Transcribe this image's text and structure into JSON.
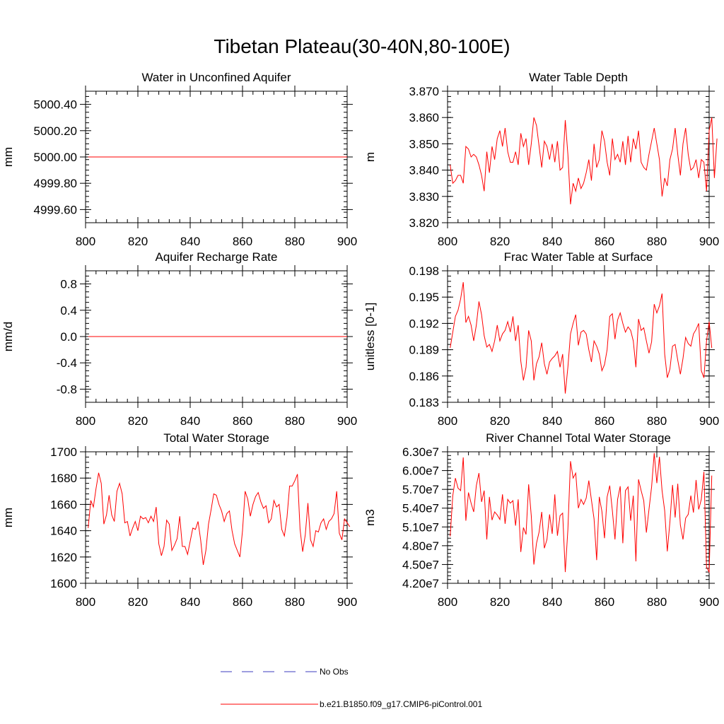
{
  "page": {
    "title": "Tibetan Plateau(30-40N,80-100E)"
  },
  "legend": {
    "items": [
      {
        "label": "No Obs",
        "color": "#3b3bbf",
        "style": "dashed"
      },
      {
        "label": "b.e21.B1850.f09_g17.CMIP6-piControl.001",
        "color": "#ff0000",
        "style": "solid"
      }
    ]
  },
  "chart_data": [
    {
      "type": "line",
      "title": "Water in Unconfined Aquifer",
      "ylabel": "mm",
      "xlim": [
        800,
        900
      ],
      "ylim": [
        4999.5,
        5000.5
      ],
      "xticks": [
        800,
        820,
        840,
        860,
        880,
        900
      ],
      "xtick_labels": [
        "800",
        "820",
        "840",
        "860",
        "880",
        "900"
      ],
      "yticks": [
        4999.6,
        4999.8,
        5000.0,
        5000.2,
        5000.4
      ],
      "ytick_labels": [
        "4999.60",
        "4999.80",
        "5000.00",
        "5000.20",
        "5000.40"
      ],
      "yminor_step": 0.04,
      "x_start": 801,
      "series": [
        {
          "color": "#ff0000",
          "values": [
            5000,
            5000,
            5000,
            5000,
            5000,
            5000,
            5000,
            5000,
            5000,
            5000,
            5000,
            5000,
            5000,
            5000,
            5000,
            5000,
            5000,
            5000,
            5000,
            5000,
            5000,
            5000,
            5000,
            5000,
            5000,
            5000,
            5000,
            5000,
            5000,
            5000,
            5000,
            5000,
            5000,
            5000,
            5000,
            5000,
            5000,
            5000,
            5000,
            5000,
            5000,
            5000,
            5000,
            5000,
            5000,
            5000,
            5000,
            5000,
            5000,
            5000,
            5000,
            5000,
            5000,
            5000,
            5000,
            5000,
            5000,
            5000,
            5000,
            5000,
            5000,
            5000,
            5000,
            5000,
            5000,
            5000,
            5000,
            5000,
            5000,
            5000,
            5000,
            5000,
            5000,
            5000,
            5000,
            5000,
            5000,
            5000,
            5000,
            5000,
            5000,
            5000,
            5000,
            5000,
            5000,
            5000,
            5000,
            5000,
            5000,
            5000,
            5000,
            5000,
            5000,
            5000,
            5000,
            5000,
            5000,
            5000,
            5000,
            5000
          ]
        }
      ]
    },
    {
      "type": "line",
      "title": "Water Table Depth",
      "ylabel": "m",
      "xlim": [
        800,
        900
      ],
      "ylim": [
        3.82,
        3.87
      ],
      "xticks": [
        800,
        820,
        840,
        860,
        880,
        900
      ],
      "xtick_labels": [
        "800",
        "820",
        "840",
        "860",
        "880",
        "900"
      ],
      "yticks": [
        3.82,
        3.83,
        3.84,
        3.85,
        3.86,
        3.87
      ],
      "ytick_labels": [
        "3.820",
        "3.830",
        "3.840",
        "3.850",
        "3.860",
        "3.870"
      ],
      "yminor_step": 0.002,
      "x_start": 801,
      "series": [
        {
          "color": "#ff0000",
          "values": [
            3.842,
            3.835,
            3.836,
            3.838,
            3.838,
            3.835,
            3.849,
            3.848,
            3.845,
            3.846,
            3.845,
            3.842,
            3.838,
            3.832,
            3.847,
            3.839,
            3.849,
            3.844,
            3.852,
            3.855,
            3.849,
            3.856,
            3.847,
            3.843,
            3.843,
            3.847,
            3.842,
            3.854,
            3.849,
            3.852,
            3.842,
            3.85,
            3.86,
            3.857,
            3.849,
            3.841,
            3.851,
            3.849,
            3.844,
            3.85,
            3.843,
            3.851,
            3.84,
            3.841,
            3.859,
            3.846,
            3.827,
            3.835,
            3.832,
            3.837,
            3.833,
            3.835,
            3.839,
            3.844,
            3.836,
            3.85,
            3.841,
            3.844,
            3.855,
            3.851,
            3.843,
            3.838,
            3.852,
            3.844,
            3.846,
            3.843,
            3.851,
            3.842,
            3.853,
            3.843,
            3.852,
            3.848,
            3.855,
            3.843,
            3.841,
            3.84,
            3.846,
            3.851,
            3.856,
            3.85,
            3.844,
            3.83,
            3.837,
            3.834,
            3.844,
            3.848,
            3.856,
            3.846,
            3.838,
            3.85,
            3.856,
            3.846,
            3.84,
            3.841,
            3.844,
            3.837,
            3.844,
            3.843,
            3.832,
            3.855,
            3.86,
            3.837,
            3.852
          ]
        }
      ]
    },
    {
      "type": "line",
      "title": "Aquifer Recharge Rate",
      "ylabel": "mm/d",
      "xlim": [
        800,
        900
      ],
      "ylim": [
        -1.0,
        1.0
      ],
      "xticks": [
        800,
        820,
        840,
        860,
        880,
        900
      ],
      "xtick_labels": [
        "800",
        "820",
        "840",
        "860",
        "880",
        "900"
      ],
      "yticks": [
        -0.8,
        -0.4,
        0.0,
        0.4,
        0.8
      ],
      "ytick_labels": [
        "-0.8",
        "-0.4",
        "0.0",
        "0.4",
        "0.8"
      ],
      "yminor_step": 0.08,
      "x_start": 801,
      "series": [
        {
          "color": "#ff0000",
          "values": [
            0,
            0,
            0,
            0,
            0,
            0,
            0,
            0,
            0,
            0,
            0,
            0,
            0,
            0,
            0,
            0,
            0,
            0,
            0,
            0,
            0,
            0,
            0,
            0,
            0,
            0,
            0,
            0,
            0,
            0,
            0,
            0,
            0,
            0,
            0,
            0,
            0,
            0,
            0,
            0,
            0,
            0,
            0,
            0,
            0,
            0,
            0,
            0,
            0,
            0,
            0,
            0,
            0,
            0,
            0,
            0,
            0,
            0,
            0,
            0,
            0,
            0,
            0,
            0,
            0,
            0,
            0,
            0,
            0,
            0,
            0,
            0,
            0,
            0,
            0,
            0,
            0,
            0,
            0,
            0,
            0,
            0,
            0,
            0,
            0,
            0,
            0,
            0,
            0,
            0,
            0,
            0,
            0,
            0,
            0,
            0,
            0,
            0,
            0,
            0
          ]
        }
      ]
    },
    {
      "type": "line",
      "title": "Frac Water Table at Surface",
      "ylabel": "unitless [0-1]",
      "xlim": [
        800,
        900
      ],
      "ylim": [
        0.183,
        0.198
      ],
      "xticks": [
        800,
        820,
        840,
        860,
        880,
        900
      ],
      "xtick_labels": [
        "800",
        "820",
        "840",
        "860",
        "880",
        "900"
      ],
      "yticks": [
        0.183,
        0.186,
        0.189,
        0.192,
        0.195,
        0.198
      ],
      "ytick_labels": [
        "0.183",
        "0.186",
        "0.189",
        "0.192",
        "0.195",
        "0.198"
      ],
      "yminor_step": 0.0006,
      "x_start": 801,
      "series": [
        {
          "color": "#ff0000",
          "values": [
            0.1892,
            0.191,
            0.1928,
            0.1935,
            0.1948,
            0.1967,
            0.1921,
            0.1928,
            0.1918,
            0.19,
            0.1918,
            0.1945,
            0.193,
            0.1906,
            0.1893,
            0.1896,
            0.1888,
            0.19,
            0.1918,
            0.19,
            0.1908,
            0.1912,
            0.1922,
            0.191,
            0.1928,
            0.19,
            0.1918,
            0.1877,
            0.1855,
            0.187,
            0.1912,
            0.19,
            0.1855,
            0.1874,
            0.1882,
            0.1898,
            0.1874,
            0.1862,
            0.1876,
            0.188,
            0.1883,
            0.1888,
            0.187,
            0.1885,
            0.184,
            0.187,
            0.1908,
            0.192,
            0.193,
            0.1895,
            0.191,
            0.1912,
            0.1908,
            0.189,
            0.1876,
            0.19,
            0.1894,
            0.1885,
            0.1866,
            0.1873,
            0.189,
            0.1928,
            0.1931,
            0.1902,
            0.1924,
            0.1932,
            0.192,
            0.191,
            0.1916,
            0.1912,
            0.19,
            0.187,
            0.1925,
            0.1912,
            0.1915,
            0.19,
            0.1886,
            0.1899,
            0.1942,
            0.1932,
            0.194,
            0.1954,
            0.1885,
            0.1858,
            0.1868,
            0.1894,
            0.1896,
            0.1878,
            0.1862,
            0.188,
            0.1904,
            0.1897,
            0.1894,
            0.1908,
            0.1913,
            0.192,
            0.1866,
            0.1858,
            0.19,
            0.1922,
            0.1892
          ]
        }
      ]
    },
    {
      "type": "line",
      "title": "Total Water Storage",
      "ylabel": "mm",
      "xlim": [
        800,
        900
      ],
      "ylim": [
        1600,
        1700
      ],
      "xticks": [
        800,
        820,
        840,
        860,
        880,
        900
      ],
      "xtick_labels": [
        "800",
        "820",
        "840",
        "860",
        "880",
        "900"
      ],
      "yticks": [
        1600,
        1620,
        1640,
        1660,
        1680,
        1700
      ],
      "ytick_labels": [
        "1600",
        "1620",
        "1640",
        "1660",
        "1680",
        "1700"
      ],
      "yminor_step": 4,
      "x_start": 801,
      "series": [
        {
          "color": "#ff0000",
          "values": [
            1642,
            1663,
            1658,
            1672,
            1684,
            1676,
            1645,
            1652,
            1667,
            1652,
            1647,
            1670,
            1676,
            1668,
            1646,
            1647,
            1636,
            1642,
            1647,
            1640,
            1651,
            1649,
            1650,
            1646,
            1651,
            1647,
            1658,
            1630,
            1621,
            1628,
            1648,
            1645,
            1625,
            1629,
            1634,
            1651,
            1628,
            1628,
            1622,
            1632,
            1642,
            1641,
            1647,
            1633,
            1614,
            1625,
            1645,
            1656,
            1668,
            1667,
            1660,
            1655,
            1647,
            1653,
            1655,
            1640,
            1630,
            1625,
            1620,
            1640,
            1670,
            1664,
            1651,
            1660,
            1666,
            1669,
            1662,
            1657,
            1659,
            1646,
            1649,
            1663,
            1658,
            1660,
            1641,
            1636,
            1650,
            1674,
            1674,
            1678,
            1683,
            1641,
            1624,
            1637,
            1661,
            1633,
            1628,
            1640,
            1639,
            1646,
            1649,
            1641,
            1647,
            1649,
            1653,
            1670,
            1638,
            1633,
            1649,
            1646,
            1643
          ]
        }
      ]
    },
    {
      "type": "line",
      "title": "River Channel Total Water Storage",
      "ylabel": "m3",
      "xlim": [
        800,
        900
      ],
      "ylim": [
        42000000,
        63000000
      ],
      "xticks": [
        800,
        820,
        840,
        860,
        880,
        900
      ],
      "xtick_labels": [
        "800",
        "820",
        "840",
        "860",
        "880",
        "900"
      ],
      "yticks": [
        42000000,
        45000000,
        48000000,
        51000000,
        54000000,
        57000000,
        60000000,
        63000000
      ],
      "ytick_labels": [
        "4.20e7",
        "4.50e7",
        "4.80e7",
        "5.10e7",
        "5.40e7",
        "5.70e7",
        "6.00e7",
        "6.30e7"
      ],
      "yminor_step": 600000,
      "x_start": 801,
      "series": [
        {
          "color": "#ff0000",
          "values": [
            49500000,
            56000000,
            58800000,
            57200000,
            56800000,
            62100000,
            52000000,
            56500000,
            54800000,
            53400000,
            57600000,
            59600000,
            55000000,
            56800000,
            49000000,
            55800000,
            52100000,
            53400000,
            52900000,
            52200000,
            56200000,
            51500000,
            55400000,
            54800000,
            55200000,
            51200000,
            55400000,
            47000000,
            50900000,
            49800000,
            57800000,
            52800000,
            45000000,
            48400000,
            50200000,
            53400000,
            47600000,
            49000000,
            53000000,
            49900000,
            56200000,
            49600000,
            52800000,
            53200000,
            43800000,
            50600000,
            61500000,
            58800000,
            59600000,
            54000000,
            55400000,
            54600000,
            55600000,
            58400000,
            55300000,
            52300000,
            45700000,
            55800000,
            53500000,
            49200000,
            55800000,
            57600000,
            53600000,
            49000000,
            55400000,
            57500000,
            48400000,
            56800000,
            57400000,
            52000000,
            56000000,
            45500000,
            58600000,
            56800000,
            55200000,
            50100000,
            53800000,
            57400000,
            62800000,
            58000000,
            62200000,
            56800000,
            53600000,
            47100000,
            51800000,
            57700000,
            52500000,
            57900000,
            51300000,
            49000000,
            52400000,
            53000000,
            56000000,
            53300000,
            58500000,
            53800000,
            55400000,
            59800000,
            44600000,
            43800000,
            59200000
          ]
        }
      ]
    }
  ]
}
